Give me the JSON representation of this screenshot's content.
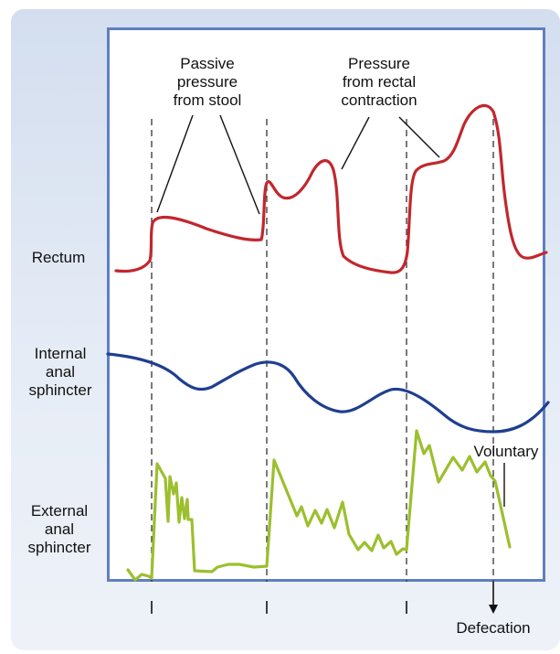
{
  "labels": {
    "rectum": "Rectum",
    "internal_anal_sphincter": "Internal\nanal\nsphincter",
    "external_anal_sphincter": "External\nanal\nsphincter",
    "passive_pressure": "Passive\npressure\nfrom stool",
    "rectal_contraction": "Pressure\nfrom rectal\ncontraction",
    "voluntary": "Voluntary",
    "defecation": "Defecation"
  },
  "colors": {
    "rectum_trace": "#c1272d",
    "internal_trace": "#1f3f8f",
    "external_trace": "#9cbf2e",
    "frame": "#5f7fbf",
    "background": "#dde5f2"
  }
}
